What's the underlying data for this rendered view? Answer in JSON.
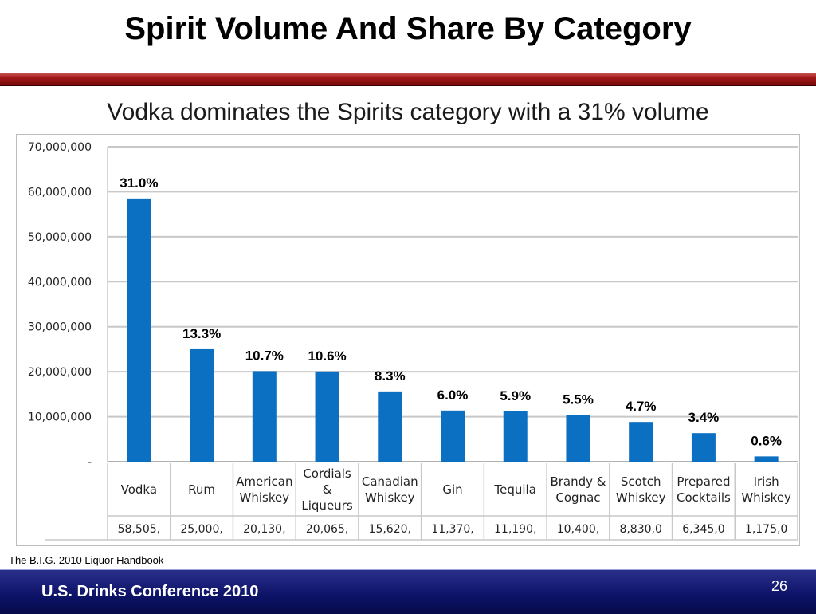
{
  "slide": {
    "title": "Spirit Volume And Share By Category",
    "subtitle": "Vodka dominates the Spirits category with a 31% volume",
    "source": "The B.I.G. 2010 Liquor Handbook",
    "footer": "U.S. Drinks Conference 2010",
    "page_number": "26"
  },
  "colors": {
    "bar": "#0b6fc2",
    "title_rule": "#a01818",
    "footer_bar": "#0c1266",
    "grid": "#c8c8c8"
  },
  "chart_data": {
    "type": "bar",
    "title": "",
    "xlabel": "",
    "ylabel": "",
    "ylim": [
      0,
      70000000
    ],
    "yticks": [
      0,
      10000000,
      20000000,
      30000000,
      40000000,
      50000000,
      60000000,
      70000000
    ],
    "ytick_labels": [
      "-",
      "10,000,000",
      "20,000,000",
      "30,000,000",
      "40,000,000",
      "50,000,000",
      "60,000,000",
      "70,000,000"
    ],
    "grid": true,
    "legend": "none",
    "categories": [
      [
        "Vodka"
      ],
      [
        "Rum"
      ],
      [
        "American",
        "Whiskey"
      ],
      [
        "Cordials",
        "&",
        "Liqueurs"
      ],
      [
        "Canadian",
        "Whiskey"
      ],
      [
        "Gin"
      ],
      [
        "Tequila"
      ],
      [
        "Brandy &",
        "Cognac"
      ],
      [
        "Scotch",
        "Whiskey"
      ],
      [
        "Prepared",
        "Cocktails"
      ],
      [
        "Irish",
        "Whiskey"
      ]
    ],
    "values": [
      58505000,
      25000000,
      20130000,
      20065000,
      15620000,
      11370000,
      11190000,
      10400000,
      8830000,
      6345000,
      1175000
    ],
    "value_labels": [
      "58,505,",
      "25,000,",
      "20,130,",
      "20,065,",
      "15,620,",
      "11,370,",
      "11,190,",
      "10,400,",
      "8,830,0",
      "6,345,0",
      "1,175,0"
    ],
    "shares": [
      "31.0%",
      "13.3%",
      "10.7%",
      "10.6%",
      "8.3%",
      "6.0%",
      "5.9%",
      "5.5%",
      "4.7%",
      "3.4%",
      "0.6%"
    ]
  }
}
